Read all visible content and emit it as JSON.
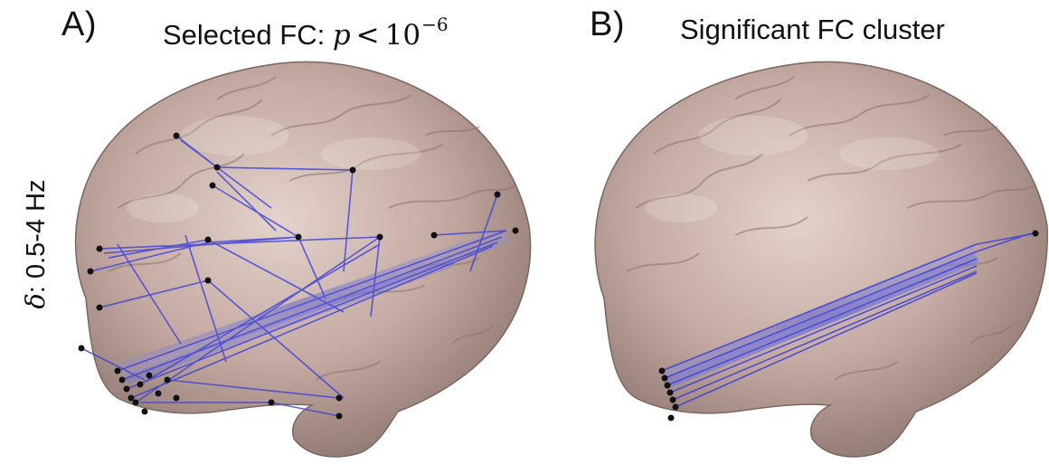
{
  "panels": [
    {
      "letter": "A)",
      "title_text": "Selected FC: ",
      "math_var": "p",
      "math_rel": "<",
      "math_base": "10",
      "math_exp": "−6"
    },
    {
      "letter": "B)",
      "title_text": "Significant FC cluster"
    }
  ],
  "row_label": {
    "symbol": "δ",
    "text": ": 0.5-4 Hz"
  },
  "colors": {
    "brain_surface": "#c7aea6",
    "brain_shadow": "#8f7a74",
    "connection": "#3a3ed8",
    "electrode": "#111111"
  }
}
